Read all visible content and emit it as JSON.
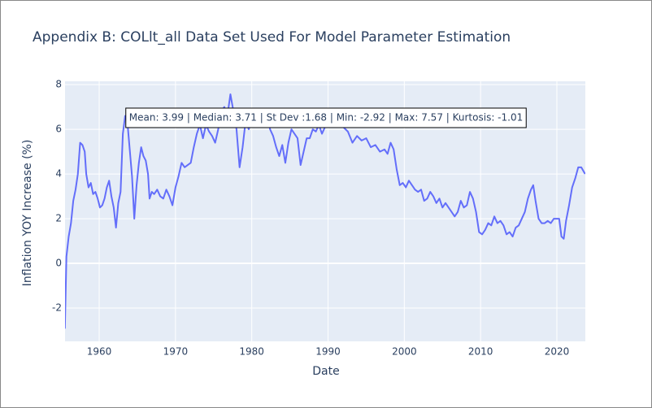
{
  "chart_data": {
    "type": "line",
    "title": "Appendix B: COLlt_all Data Set Used For Model Parameter Estimation",
    "xlabel": "Date",
    "ylabel": "Inflation YOY Increase (%)",
    "annotation": "Mean: 3.99 | Median: 3.71 | St Dev :1.68 | Min: -2.92 | Max: 7.57 | Kurtosis: -1.01",
    "color": "#636efa",
    "grid": true,
    "xlim": [
      1955.52,
      2023.73
    ],
    "ylim": [
      -3.49,
      8.15
    ],
    "xticks": [
      1960,
      1970,
      1980,
      1990,
      2000,
      2010,
      2020
    ],
    "yticks": [
      -2,
      0,
      2,
      4,
      6,
      8
    ],
    "x": [
      1955.5,
      1955.7,
      1956,
      1956.3,
      1956.6,
      1956.9,
      1957.2,
      1957.5,
      1957.8,
      1958.1,
      1958.3,
      1958.6,
      1958.9,
      1959.2,
      1959.5,
      1959.8,
      1960.1,
      1960.4,
      1960.7,
      1961,
      1961.3,
      1961.6,
      1961.9,
      1962.2,
      1962.5,
      1962.8,
      1963.1,
      1963.4,
      1963.7,
      1964,
      1964.3,
      1964.6,
      1964.9,
      1965.2,
      1965.5,
      1965.8,
      1966.1,
      1966.4,
      1966.6,
      1966.9,
      1967.2,
      1967.6,
      1968,
      1968.4,
      1968.8,
      1969.2,
      1969.6,
      1970,
      1970.4,
      1970.8,
      1971.2,
      1971.6,
      1972,
      1972.4,
      1972.8,
      1973.2,
      1973.6,
      1974,
      1974.4,
      1974.8,
      1975.2,
      1975.6,
      1976,
      1976.4,
      1976.8,
      1977.2,
      1977.6,
      1978,
      1978.4,
      1978.8,
      1979.2,
      1979.6,
      1980,
      1980.4,
      1980.8,
      1981.2,
      1981.6,
      1982,
      1982.4,
      1982.8,
      1983.2,
      1983.6,
      1984,
      1984.4,
      1984.8,
      1985.2,
      1985.6,
      1986,
      1986.4,
      1986.8,
      1987.2,
      1987.6,
      1988,
      1988.4,
      1988.8,
      1989.2,
      1989.6,
      1990,
      1991,
      1992,
      1992.6,
      1993.2,
      1993.8,
      1994.4,
      1995,
      1995.6,
      1996.2,
      1996.8,
      1997.4,
      1997.8,
      1998.2,
      1998.6,
      1999,
      1999.4,
      1999.8,
      2000.2,
      2000.6,
      2001,
      2001.4,
      2001.8,
      2002.2,
      2002.6,
      2003,
      2003.4,
      2003.8,
      2004.2,
      2004.6,
      2005,
      2005.4,
      2005.8,
      2006.2,
      2006.6,
      2007,
      2007.4,
      2007.8,
      2008.2,
      2008.6,
      2009,
      2009.4,
      2009.8,
      2010.2,
      2010.6,
      2011,
      2011.4,
      2011.8,
      2012.2,
      2012.6,
      2013,
      2013.4,
      2013.8,
      2014.2,
      2014.6,
      2015,
      2015.4,
      2015.8,
      2016.2,
      2016.6,
      2016.9,
      2017.2,
      2017.6,
      2018,
      2018.4,
      2018.8,
      2019.2,
      2019.6,
      2020,
      2020.3,
      2020.6,
      2020.9,
      2021.2,
      2021.6,
      2022,
      2022.4,
      2022.8,
      2023.2,
      2023.7
    ],
    "values": [
      -2.92,
      0.3,
      1.2,
      1.8,
      2.8,
      3.3,
      4.0,
      5.4,
      5.3,
      5.0,
      4.0,
      3.4,
      3.6,
      3.1,
      3.2,
      2.9,
      2.5,
      2.6,
      2.9,
      3.4,
      3.7,
      3.0,
      2.5,
      1.6,
      2.7,
      3.2,
      5.8,
      6.6,
      6.3,
      5.1,
      3.9,
      2.0,
      3.5,
      4.5,
      5.2,
      4.8,
      4.6,
      4.0,
      2.9,
      3.2,
      3.1,
      3.3,
      3.0,
      2.9,
      3.3,
      3.0,
      2.6,
      3.4,
      3.9,
      4.5,
      4.3,
      4.4,
      4.5,
      5.2,
      5.8,
      6.2,
      5.6,
      6.2,
      5.9,
      5.7,
      5.4,
      6.0,
      6.8,
      7.0,
      6.6,
      7.57,
      6.8,
      6.0,
      4.3,
      5.2,
      6.4,
      6.0,
      6.5,
      6.1,
      6.4,
      6.2,
      6.5,
      6.6,
      6.0,
      5.7,
      5.2,
      4.8,
      5.3,
      4.5,
      5.4,
      6.0,
      5.8,
      5.6,
      4.4,
      5.0,
      5.6,
      5.6,
      6.0,
      5.9,
      6.2,
      5.8,
      6.1,
      6.4,
      6.3,
      6.1,
      5.9,
      5.4,
      5.7,
      5.5,
      5.6,
      5.2,
      5.3,
      5.0,
      5.1,
      4.9,
      5.4,
      5.1,
      4.2,
      3.5,
      3.6,
      3.4,
      3.7,
      3.5,
      3.3,
      3.2,
      3.3,
      2.8,
      2.9,
      3.2,
      3.0,
      2.7,
      2.9,
      2.5,
      2.7,
      2.5,
      2.3,
      2.1,
      2.3,
      2.8,
      2.5,
      2.6,
      3.2,
      2.9,
      2.3,
      1.4,
      1.3,
      1.5,
      1.8,
      1.7,
      2.1,
      1.8,
      1.9,
      1.7,
      1.3,
      1.4,
      1.2,
      1.6,
      1.7,
      2.0,
      2.3,
      2.9,
      3.3,
      3.5,
      2.8,
      2.0,
      1.8,
      1.8,
      1.9,
      1.8,
      2.0,
      2.0,
      2.0,
      1.2,
      1.1,
      1.9,
      2.6,
      3.4,
      3.8,
      4.3,
      4.3,
      4.0
    ]
  }
}
